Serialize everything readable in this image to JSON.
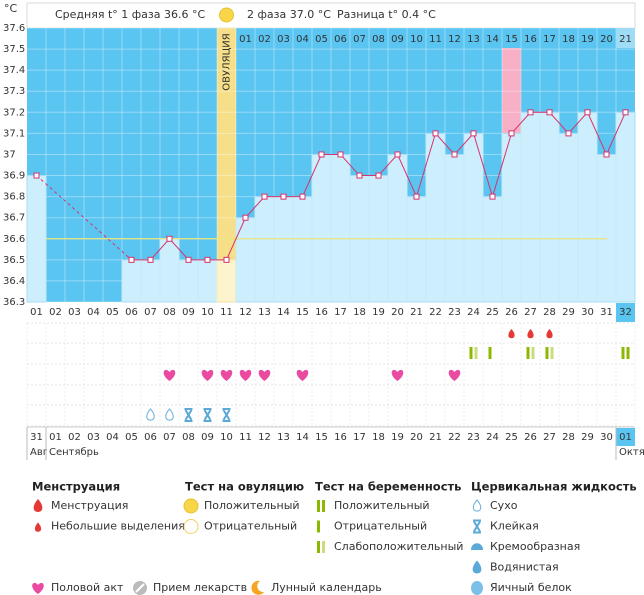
{
  "header": {
    "unit": "°C",
    "phase1": "Средняя t° 1 фаза 36.6 °C",
    "phase2": "2 фаза 37.0 °C",
    "diff": "Разница t° 0.4 °C"
  },
  "chart_data": {
    "type": "line",
    "ylim": [
      36.3,
      37.6
    ],
    "yticks": [
      36.3,
      36.4,
      36.5,
      36.6,
      36.7,
      36.8,
      36.9,
      37,
      37.1,
      37.2,
      37.3,
      37.4,
      37.5,
      37.6
    ],
    "grid": true,
    "color": "#d6336c",
    "categories": [
      "01",
      "02",
      "03",
      "04",
      "05",
      "06",
      "07",
      "08",
      "09",
      "10",
      "11",
      "12",
      "13",
      "14",
      "15",
      "16",
      "17",
      "18",
      "19",
      "20",
      "21",
      "22",
      "23",
      "24",
      "25",
      "26",
      "27",
      "28",
      "29",
      "30",
      "31",
      "32"
    ],
    "values": [
      36.9,
      null,
      null,
      null,
      null,
      36.5,
      36.5,
      36.6,
      36.5,
      36.5,
      36.5,
      36.7,
      36.8,
      36.8,
      36.8,
      37,
      37,
      36.9,
      36.9,
      37,
      36.8,
      37.1,
      37,
      37.1,
      36.8,
      37.1,
      37.2,
      37.2,
      37.1,
      37.2,
      37,
      37.2
    ],
    "cover_line": 36.6,
    "ovulation_label": "ОВУЛЯЦИЯ",
    "post_ovulation_days": [
      null,
      null,
      null,
      null,
      null,
      null,
      null,
      null,
      null,
      null,
      null,
      "01",
      "02",
      "03",
      "04",
      "05",
      "06",
      "07",
      "08",
      "09",
      "10",
      "11",
      "12",
      "13",
      "14",
      "15",
      "16",
      "17",
      "18",
      "19",
      "20",
      "21"
    ],
    "highlight": [
      null,
      null,
      null,
      null,
      null,
      null,
      null,
      null,
      null,
      null,
      "ovulation",
      null,
      null,
      null,
      null,
      null,
      null,
      null,
      null,
      null,
      null,
      null,
      null,
      null,
      null,
      "pink",
      null,
      null,
      null,
      null,
      null,
      "today"
    ],
    "dates": [
      "31",
      "01",
      "02",
      "03",
      "04",
      "05",
      "06",
      "07",
      "08",
      "09",
      "10",
      "11",
      "12",
      "13",
      "14",
      "15",
      "16",
      "17",
      "18",
      "19",
      "20",
      "21",
      "22",
      "23",
      "24",
      "25",
      "26",
      "27",
      "28",
      "29",
      "30",
      "01"
    ],
    "weekend": [
      false,
      false,
      false,
      true,
      true,
      false,
      false,
      false,
      false,
      false,
      true,
      true,
      false,
      false,
      false,
      false,
      false,
      true,
      true,
      false,
      false,
      false,
      false,
      false,
      true,
      true,
      false,
      false,
      false,
      false,
      false,
      false
    ],
    "months": [
      "Август",
      "Сентябрь",
      "Октя"
    ],
    "menstruation": [
      null,
      null,
      null,
      null,
      null,
      null,
      null,
      null,
      null,
      null,
      null,
      null,
      null,
      null,
      null,
      null,
      null,
      null,
      null,
      null,
      null,
      null,
      null,
      null,
      null,
      "light",
      "light",
      "light",
      null,
      null,
      null,
      null
    ],
    "pregnancy_test": [
      null,
      null,
      null,
      null,
      null,
      null,
      null,
      null,
      null,
      null,
      null,
      null,
      null,
      null,
      null,
      null,
      null,
      null,
      null,
      null,
      null,
      null,
      null,
      "preg-weak",
      "preg-neg",
      null,
      "preg-weak",
      "preg-weak",
      null,
      null,
      null,
      "preg-pos"
    ],
    "intercourse": [
      false,
      false,
      false,
      false,
      false,
      false,
      false,
      true,
      false,
      true,
      true,
      true,
      true,
      false,
      true,
      false,
      false,
      false,
      false,
      true,
      false,
      false,
      true,
      false,
      false,
      false,
      false,
      false,
      false,
      false,
      false,
      false
    ],
    "cervical_fluid": [
      null,
      null,
      null,
      null,
      null,
      null,
      "dry",
      "dry",
      "sticky",
      "sticky",
      "sticky",
      null,
      null,
      null,
      null,
      null,
      null,
      null,
      null,
      null,
      null,
      null,
      null,
      null,
      null,
      null,
      null,
      null,
      null,
      null,
      null,
      null
    ]
  },
  "legend": {
    "groups": [
      {
        "title": "Менструация",
        "items": [
          {
            "text": "Менструация",
            "icon": "heavy"
          },
          {
            "text": "Небольшие выделения",
            "icon": "light"
          }
        ]
      },
      {
        "title": "Тест на овуляцию",
        "items": [
          {
            "text": "Положительный",
            "icon": "ovu-pos"
          },
          {
            "text": "Отрицательный",
            "icon": "ovu-neg"
          }
        ]
      },
      {
        "title": "Тест на беременность",
        "items": [
          {
            "text": "Положительный",
            "icon": "preg-pos"
          },
          {
            "text": "Отрицательный",
            "icon": "preg-neg"
          },
          {
            "text": "Слабоположительный",
            "icon": "preg-weak"
          }
        ]
      },
      {
        "title": "Цервикальная жидкость",
        "items": [
          {
            "text": "Сухо",
            "icon": "dry"
          },
          {
            "text": "Клейкая",
            "icon": "sticky"
          },
          {
            "text": "Кремообразная",
            "icon": "creamy"
          },
          {
            "text": "Водянистая",
            "icon": "watery"
          },
          {
            "text": "Яичный белок",
            "icon": "eggwhite"
          }
        ]
      }
    ],
    "extras": [
      {
        "text": "Половой акт",
        "icon": "heart"
      },
      {
        "text": "Прием лекарств",
        "icon": "pill"
      },
      {
        "text": "Лунный календарь",
        "icon": "moon"
      }
    ]
  }
}
